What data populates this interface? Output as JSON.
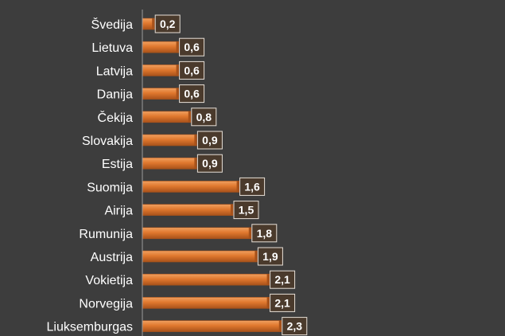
{
  "chart_data": {
    "type": "bar",
    "orientation": "horizontal",
    "categories": [
      "Švedija",
      "Lietuva",
      "Latvija",
      "Danija",
      "Čekija",
      "Slovakija",
      "Estija",
      "Suomija",
      "Airija",
      "Rumunija",
      "Austrija",
      "Vokietija",
      "Norvegija",
      "Liuksemburgas"
    ],
    "values": [
      0.2,
      0.6,
      0.6,
      0.6,
      0.8,
      0.9,
      0.9,
      1.6,
      1.5,
      1.8,
      1.9,
      2.1,
      2.1,
      2.3
    ],
    "value_labels": [
      "0,2",
      "0,6",
      "0,6",
      "0,6",
      "0,8",
      "0,9",
      "0,9",
      "1,6",
      "1,5",
      "1,8",
      "1,9",
      "2,1",
      "2,1",
      "2,3"
    ],
    "xlim": [
      0,
      2.3
    ],
    "grid": false,
    "legend": "none",
    "colors": {
      "background": "#3d3d3d",
      "bar": "#e0782e",
      "bar_highlight": "#f0a060",
      "bar_shadow": "#a8521a",
      "label_box": "#4a3a2c",
      "label_border": "#e8e0d8",
      "text": "#ffffff",
      "axis": "#9a9a9a"
    }
  }
}
